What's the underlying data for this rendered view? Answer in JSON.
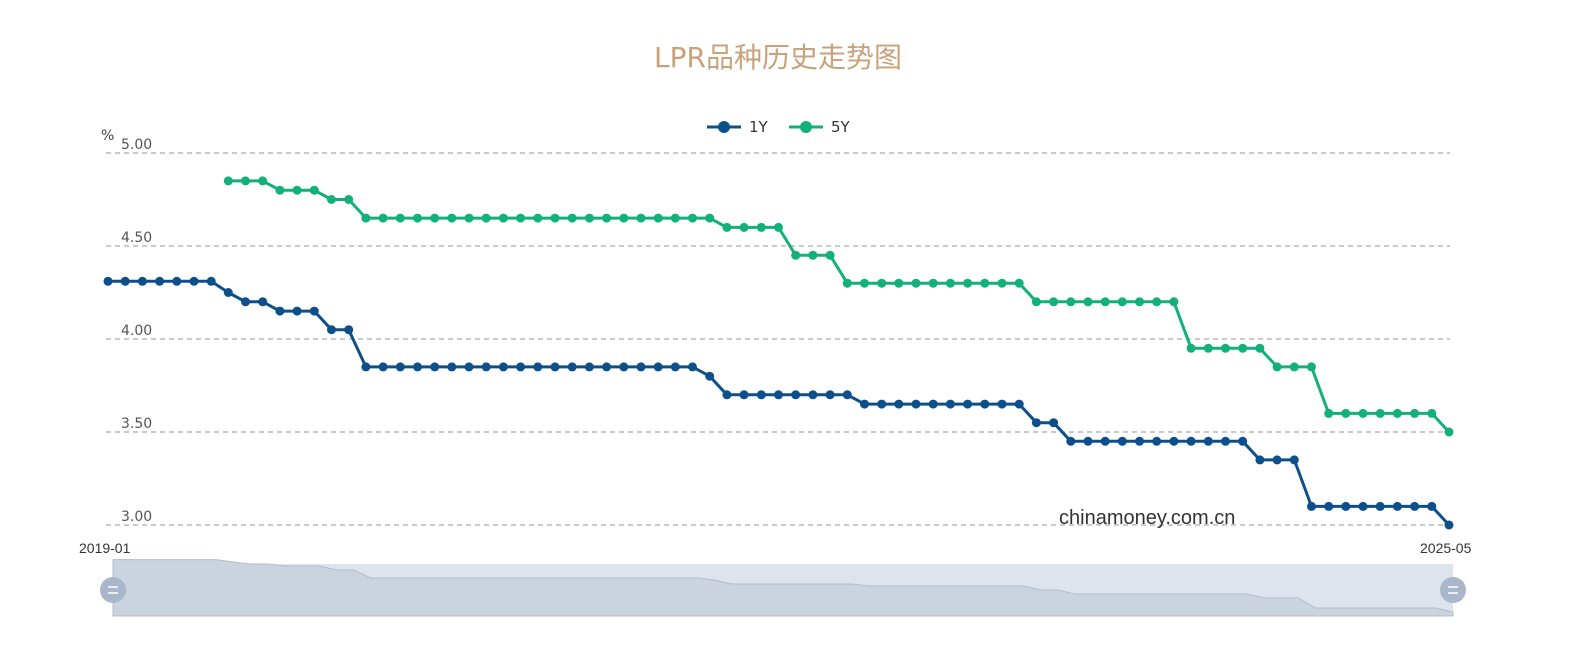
{
  "chart_data": {
    "type": "line",
    "title": "LPR品种历史走势图",
    "ylabel": "%",
    "xlabel": "",
    "ylim": [
      3.0,
      5.0
    ],
    "yticks": [
      "5.00",
      "4.50",
      "4.00",
      "3.50",
      "3.00"
    ],
    "grid": true,
    "legend_position": "top-center",
    "x_start_label": "2019-01",
    "x_end_label": "2025-05",
    "watermark": "chinamoney.com.cn",
    "series": [
      {
        "name": "1Y",
        "color": "#0d4f8b",
        "values": [
          4.31,
          4.31,
          4.31,
          4.31,
          4.31,
          4.31,
          4.31,
          4.25,
          4.2,
          4.2,
          4.15,
          4.15,
          4.15,
          4.05,
          4.05,
          3.85,
          3.85,
          3.85,
          3.85,
          3.85,
          3.85,
          3.85,
          3.85,
          3.85,
          3.85,
          3.85,
          3.85,
          3.85,
          3.85,
          3.85,
          3.85,
          3.85,
          3.85,
          3.85,
          3.85,
          3.8,
          3.7,
          3.7,
          3.7,
          3.7,
          3.7,
          3.7,
          3.7,
          3.7,
          3.65,
          3.65,
          3.65,
          3.65,
          3.65,
          3.65,
          3.65,
          3.65,
          3.65,
          3.65,
          3.55,
          3.55,
          3.45,
          3.45,
          3.45,
          3.45,
          3.45,
          3.45,
          3.45,
          3.45,
          3.45,
          3.45,
          3.45,
          3.35,
          3.35,
          3.35,
          3.1,
          3.1,
          3.1,
          3.1,
          3.1,
          3.1,
          3.1,
          3.1,
          3.0
        ]
      },
      {
        "name": "5Y",
        "color": "#12b07c",
        "values": [
          null,
          null,
          null,
          null,
          null,
          null,
          null,
          4.85,
          4.85,
          4.85,
          4.8,
          4.8,
          4.8,
          4.75,
          4.75,
          4.65,
          4.65,
          4.65,
          4.65,
          4.65,
          4.65,
          4.65,
          4.65,
          4.65,
          4.65,
          4.65,
          4.65,
          4.65,
          4.65,
          4.65,
          4.65,
          4.65,
          4.65,
          4.65,
          4.65,
          4.65,
          4.6,
          4.6,
          4.6,
          4.6,
          4.45,
          4.45,
          4.45,
          4.3,
          4.3,
          4.3,
          4.3,
          4.3,
          4.3,
          4.3,
          4.3,
          4.3,
          4.3,
          4.3,
          4.2,
          4.2,
          4.2,
          4.2,
          4.2,
          4.2,
          4.2,
          4.2,
          4.2,
          3.95,
          3.95,
          3.95,
          3.95,
          3.95,
          3.85,
          3.85,
          3.85,
          3.6,
          3.6,
          3.6,
          3.6,
          3.6,
          3.6,
          3.6,
          3.5
        ]
      }
    ]
  }
}
